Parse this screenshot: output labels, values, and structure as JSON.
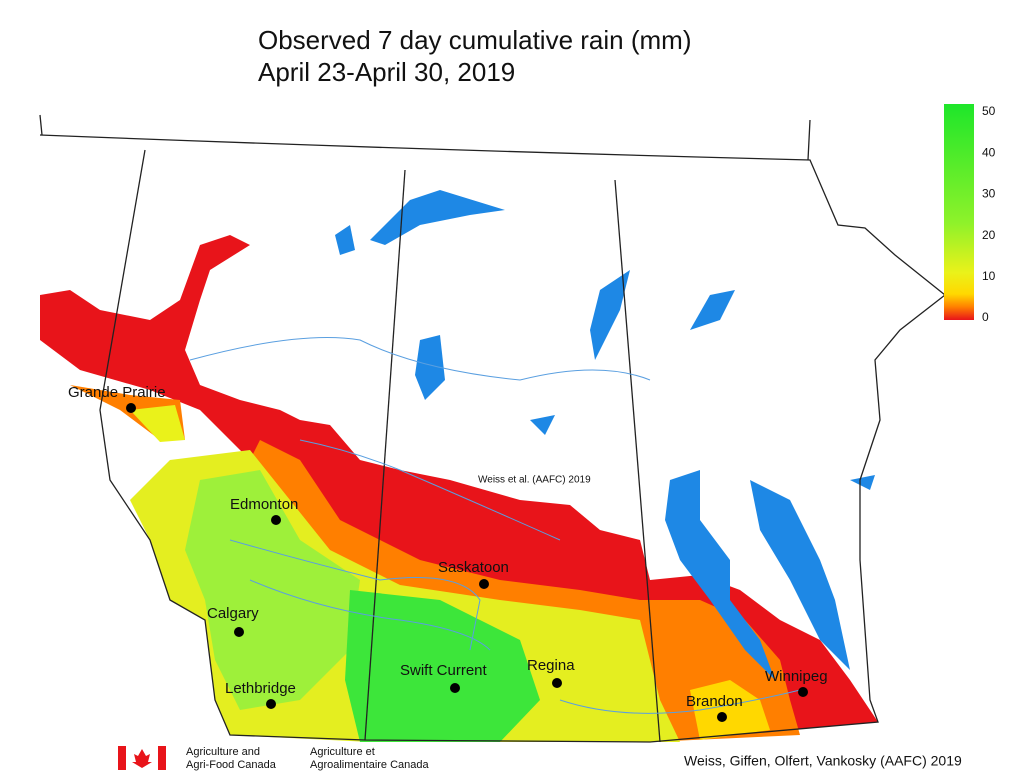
{
  "title": {
    "line1": "Observed 7 day cumulative rain (mm)",
    "line2": "April 23-April 30, 2019"
  },
  "legend": {
    "ticks": [
      "50",
      "40",
      "30",
      "20",
      "10",
      "0"
    ]
  },
  "cities": [
    {
      "label": "Grande Prairie"
    },
    {
      "label": "Edmonton"
    },
    {
      "label": "Calgary"
    },
    {
      "label": "Lethbridge"
    },
    {
      "label": "Saskatoon"
    },
    {
      "label": "Swift Current"
    },
    {
      "label": "Regina"
    },
    {
      "label": "Brandon"
    },
    {
      "label": "Winnipeg"
    }
  ],
  "watermark": "Weiss et al. (AAFC) 2019",
  "footer": {
    "agency_en_1": "Agriculture and",
    "agency_en_2": "Agri-Food Canada",
    "agency_fr_1": "Agriculture et",
    "agency_fr_2": "Agroalimentaire Canada",
    "credit": "Weiss, Giffen, Olfert, Vankosky (AAFC) 2019"
  }
}
